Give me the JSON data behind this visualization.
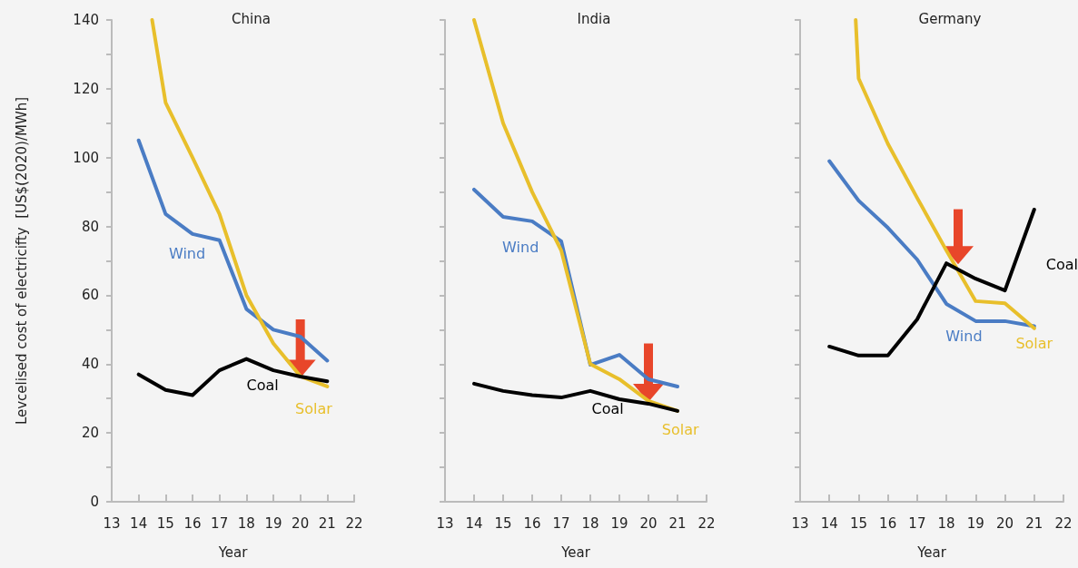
{
  "chart_data": [
    {
      "type": "line",
      "title": "China",
      "xlabel": "Year",
      "ylabel": "Levcelised cost of electricifty  [US$(2020)/MWh]",
      "xlim": [
        13,
        22
      ],
      "xticks": [
        13,
        14,
        15,
        16,
        17,
        18,
        19,
        20,
        21,
        22
      ],
      "ylim": [
        0,
        140
      ],
      "yticks": [
        0,
        {
          "value": 10,
          "label": null
        },
        20,
        {
          "value": 30,
          "label": null
        },
        40,
        {
          "value": 50,
          "label": null
        },
        60,
        {
          "value": 70,
          "label": null
        },
        80,
        {
          "value": 90,
          "label": null
        },
        100,
        {
          "value": 110,
          "label": null
        },
        120,
        {
          "value": 130,
          "label": null
        },
        140
      ],
      "marker": "none",
      "line_style": "solid",
      "series": [
        {
          "name": "Wind",
          "color": "#4a7cc4",
          "x": [
            14,
            15,
            16,
            17,
            18,
            19,
            20,
            21
          ],
          "values": [
            105,
            83.6,
            77.8,
            76,
            56,
            50,
            48,
            41
          ]
        },
        {
          "name": "Solar",
          "color": "#e8bf2b",
          "x": [
            14.5,
            15,
            16,
            17,
            18,
            19,
            20,
            21
          ],
          "values": [
            140,
            116,
            100,
            83.6,
            60,
            46,
            36.5,
            33.5
          ]
        },
        {
          "name": "Coal",
          "color": "#000000",
          "x": [
            14,
            15,
            16,
            17,
            18,
            19,
            20,
            21
          ],
          "values": [
            37,
            32.5,
            31,
            38.2,
            41.5,
            38.2,
            36.4,
            35
          ]
        }
      ]
    },
    {
      "type": "line",
      "title": "India",
      "xlabel": "Year",
      "tick_labels": "x",
      "xlim": [
        13,
        22
      ],
      "xticks": [
        13,
        14,
        15,
        16,
        17,
        18,
        19,
        20,
        21,
        22
      ],
      "ylim": [
        0,
        140
      ],
      "yticks": [
        0,
        {
          "value": 10,
          "label": null
        },
        20,
        {
          "value": 30,
          "label": null
        },
        40,
        {
          "value": 50,
          "label": null
        },
        60,
        {
          "value": 70,
          "label": null
        },
        80,
        {
          "value": 90,
          "label": null
        },
        100,
        {
          "value": 110,
          "label": null
        },
        120,
        {
          "value": 130,
          "label": null
        },
        140
      ],
      "marker": "none",
      "line_style": "solid",
      "series": [
        {
          "name": "Wind",
          "color": "#4a7cc4",
          "x": [
            14,
            15,
            16,
            17,
            18,
            19,
            20,
            21
          ],
          "values": [
            90.7,
            82.8,
            81.5,
            75.7,
            39.8,
            42.7,
            35.6,
            33.5
          ]
        },
        {
          "name": "Solar",
          "color": "#e8bf2b",
          "x": [
            14,
            15,
            16,
            17,
            18,
            19,
            20,
            21
          ],
          "values": [
            140,
            110,
            90,
            73,
            40,
            35.6,
            29.3,
            26.4
          ]
        },
        {
          "name": "Coal",
          "color": "#000000",
          "x": [
            14,
            15,
            16,
            17,
            18,
            19,
            20,
            21
          ],
          "values": [
            34.3,
            32.2,
            31,
            30.3,
            32.2,
            29.8,
            28.5,
            26.4
          ]
        }
      ]
    },
    {
      "type": "line",
      "title": "Germany",
      "xlabel": "Year",
      "tick_labels": "x",
      "xlim": [
        13,
        22
      ],
      "xticks": [
        13,
        14,
        15,
        16,
        17,
        18,
        19,
        20,
        21,
        22
      ],
      "ylim": [
        0,
        140
      ],
      "yticks": [
        0,
        {
          "value": 10,
          "label": null
        },
        20,
        {
          "value": 30,
          "label": null
        },
        40,
        {
          "value": 50,
          "label": null
        },
        60,
        {
          "value": 70,
          "label": null
        },
        80,
        {
          "value": 90,
          "label": null
        },
        100,
        {
          "value": 110,
          "label": null
        },
        120,
        {
          "value": 130,
          "label": null
        },
        140
      ],
      "marker": "none",
      "line_style": "solid",
      "series": [
        {
          "name": "Wind",
          "color": "#4a7cc4",
          "x": [
            14,
            15,
            16,
            17,
            18,
            19,
            20,
            21
          ],
          "values": [
            99,
            87.5,
            79.6,
            70.4,
            57.5,
            52.5,
            52.5,
            51
          ]
        },
        {
          "name": "Solar",
          "color": "#e8bf2b",
          "x": [
            14.9,
            15,
            16,
            17,
            18,
            19,
            20,
            21
          ],
          "values": [
            140,
            123,
            104,
            88.3,
            73,
            58.3,
            57.7,
            50.4
          ]
        },
        {
          "name": "Coal",
          "color": "#000000",
          "x": [
            14,
            15,
            16,
            17,
            18,
            19,
            20,
            21
          ],
          "values": [
            45.1,
            42.5,
            42.5,
            53,
            69.3,
            64.8,
            61.4,
            84.9
          ]
        }
      ]
    }
  ]
}
